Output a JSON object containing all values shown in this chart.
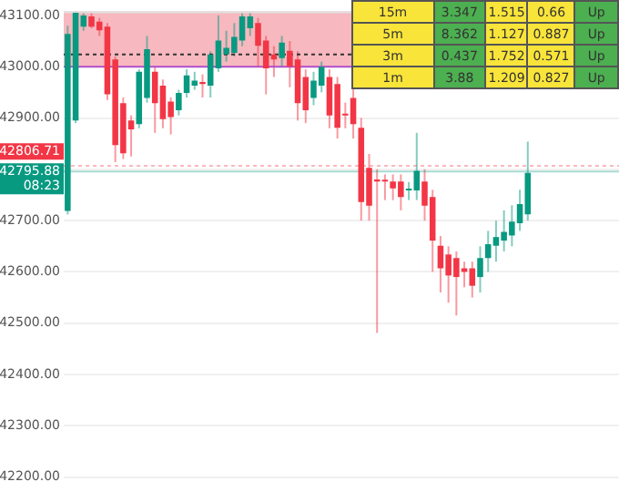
{
  "chart_data": {
    "type": "candlestick",
    "categories": [
      null,
      null,
      null,
      null,
      null,
      null,
      null,
      null,
      null,
      null,
      null,
      null,
      null,
      null,
      null,
      null,
      null,
      null,
      null,
      null,
      null,
      null,
      null,
      null,
      null,
      null,
      null,
      null,
      null,
      null,
      null,
      null,
      null,
      null,
      null,
      null,
      null,
      null,
      null,
      null,
      null,
      null,
      null,
      null,
      null,
      null,
      null,
      null,
      null,
      null,
      null,
      null,
      null,
      null,
      null,
      null,
      null,
      null,
      null,
      null,
      null,
      null,
      null,
      null,
      null,
      null,
      null,
      null,
      null,
      null
    ],
    "ohlc": [
      [
        42719,
        43080,
        42712,
        43064
      ],
      [
        42895,
        43108,
        42890,
        43105
      ],
      [
        43078,
        43105,
        43070,
        43100
      ],
      [
        43098,
        43105,
        43075,
        43078
      ],
      [
        43088,
        43095,
        43060,
        43071
      ],
      [
        43078,
        43085,
        42935,
        42946
      ],
      [
        43014,
        43020,
        42814,
        42847
      ],
      [
        42929,
        42940,
        42820,
        42831
      ],
      [
        42895,
        42905,
        42825,
        42878
      ],
      [
        42888,
        42995,
        42880,
        42990
      ],
      [
        42939,
        43060,
        42930,
        43034
      ],
      [
        42990,
        43000,
        42871,
        42929
      ],
      [
        42963,
        42975,
        42880,
        42898
      ],
      [
        42932,
        42940,
        42868,
        42902
      ],
      [
        42915,
        42955,
        42905,
        42949
      ],
      [
        42949,
        42995,
        42940,
        42983
      ],
      [
        42963,
        42990,
        42955,
        42973
      ],
      [
        42970,
        42985,
        42940,
        42966
      ],
      [
        42963,
        43030,
        42940,
        43024
      ],
      [
        42997,
        43100,
        42990,
        43051
      ],
      [
        43024,
        43070,
        43010,
        43037
      ],
      [
        43027,
        43085,
        43020,
        43058
      ],
      [
        43051,
        43105,
        43040,
        43098
      ],
      [
        43075,
        43105,
        43060,
        43098
      ],
      [
        43085,
        43095,
        43000,
        43041
      ],
      [
        43051,
        43060,
        42946,
        42997
      ],
      [
        43024,
        43040,
        42980,
        43014
      ],
      [
        43017,
        43060,
        43000,
        43047
      ],
      [
        43031,
        43050,
        42960,
        43000
      ],
      [
        43014,
        43030,
        42895,
        42929
      ],
      [
        42980,
        42995,
        42890,
        42915
      ],
      [
        42939,
        42990,
        42925,
        42973
      ],
      [
        42963,
        43010,
        42950,
        43000
      ],
      [
        42980,
        42995,
        42880,
        42905
      ],
      [
        42966,
        42980,
        42860,
        42881
      ],
      [
        42908,
        42930,
        42880,
        42905
      ],
      [
        42939,
        42960,
        42860,
        42888
      ],
      [
        42881,
        42900,
        42700,
        42736
      ],
      [
        42803,
        42830,
        42700,
        42729
      ],
      [
        42780,
        42800,
        42481,
        42776
      ],
      [
        42778,
        42790,
        42740,
        42776
      ],
      [
        42776,
        42790,
        42740,
        42763
      ],
      [
        42776,
        42790,
        42720,
        42746
      ],
      [
        42760,
        42775,
        42740,
        42759
      ],
      [
        42759,
        42871,
        42740,
        42797
      ],
      [
        42776,
        42800,
        42700,
        42729
      ],
      [
        42746,
        42760,
        42600,
        42661
      ],
      [
        42651,
        42670,
        42560,
        42607
      ],
      [
        42634,
        42650,
        42540,
        42593
      ],
      [
        42627,
        42640,
        42515,
        42590
      ],
      [
        42607,
        42620,
        42570,
        42600
      ],
      [
        42607,
        42620,
        42550,
        42573
      ],
      [
        42590,
        42650,
        42560,
        42627
      ],
      [
        42627,
        42680,
        42600,
        42654
      ],
      [
        42651,
        42700,
        42620,
        42668
      ],
      [
        42661,
        42720,
        42640,
        42678
      ],
      [
        42671,
        42730,
        42650,
        42698
      ],
      [
        42695,
        42760,
        42680,
        42732
      ],
      [
        42712,
        42854,
        42700,
        42793
      ],
      null,
      null,
      null,
      null,
      null,
      null,
      null,
      null,
      null,
      null,
      null
    ],
    "colors": [
      "#089981",
      "#089981",
      "#089981",
      "#f23645",
      "#f23645",
      "#f23645",
      "#f23645",
      "#f23645",
      "#f23645",
      "#089981",
      "#089981",
      "#f23645",
      "#f23645",
      "#f23645",
      "#089981",
      "#089981",
      "#089981",
      "#f23645",
      "#089981",
      "#089981",
      "#089981",
      "#089981",
      "#089981",
      "#089981",
      "#f23645",
      "#f23645",
      "#f23645",
      "#089981",
      "#f23645",
      "#f23645",
      "#f23645",
      "#089981",
      "#089981",
      "#f23645",
      "#f23645",
      "#f23645",
      "#f23645",
      "#f23645",
      "#f23645",
      "#f23645",
      "#f23645",
      "#f23645",
      "#f23645",
      "#089981",
      "#089981",
      "#f23645",
      "#f23645",
      "#f23645",
      "#f23645",
      "#f23645",
      "#f23645",
      "#f23645",
      "#089981",
      "#089981",
      "#089981",
      "#089981",
      "#089981",
      "#089981",
      "#089981",
      null,
      null,
      null,
      null,
      null,
      null,
      null,
      null,
      null,
      null,
      null
    ],
    "ylim": [
      42193,
      43108
    ],
    "yticks": [
      {
        "value": 42200,
        "label": "42200.00"
      },
      {
        "value": 42300,
        "label": "42300.00"
      },
      {
        "value": 42400,
        "label": "42400.00"
      },
      {
        "value": 42500,
        "label": "42500.00"
      },
      {
        "value": 42600,
        "label": "42600.00"
      },
      {
        "value": 42700,
        "label": "42700.00"
      },
      {
        "value": 42800,
        "label": null
      },
      {
        "value": 42900,
        "label": "42900.00"
      },
      {
        "value": 43000,
        "label": "43000.00"
      },
      {
        "value": 43100,
        "label": "43100.00"
      }
    ],
    "tick_labels": "y",
    "grid": "y",
    "bands": [
      {
        "axis": "y",
        "from": 43000,
        "to": 43108,
        "color": "#f7b8bf"
      }
    ],
    "ref_lines": [
      {
        "axis": "y",
        "value": 43000,
        "color": "#b04fc8",
        "line_style": "solid"
      },
      {
        "axis": "y",
        "value": 43024,
        "color": "#333333",
        "line_style": "dotted"
      },
      {
        "axis": "y",
        "value": 42806.71,
        "label": "42806.71",
        "color": "#f23645",
        "line_style": "dotted"
      },
      {
        "axis": "y",
        "value": 42795.88,
        "label": "42795.88\n08:23",
        "color": "#089981",
        "line_style": "solid"
      }
    ],
    "annotations": [
      "15m",
      "3.347",
      "1.515",
      "0.66",
      "Up",
      "5m",
      "8.362",
      "1.127",
      "0.887",
      "Up",
      "3m",
      "0.437",
      "1.752",
      "0.571",
      "Up",
      "1m",
      "3.88",
      "1.209",
      "0.827",
      "Up"
    ]
  }
}
